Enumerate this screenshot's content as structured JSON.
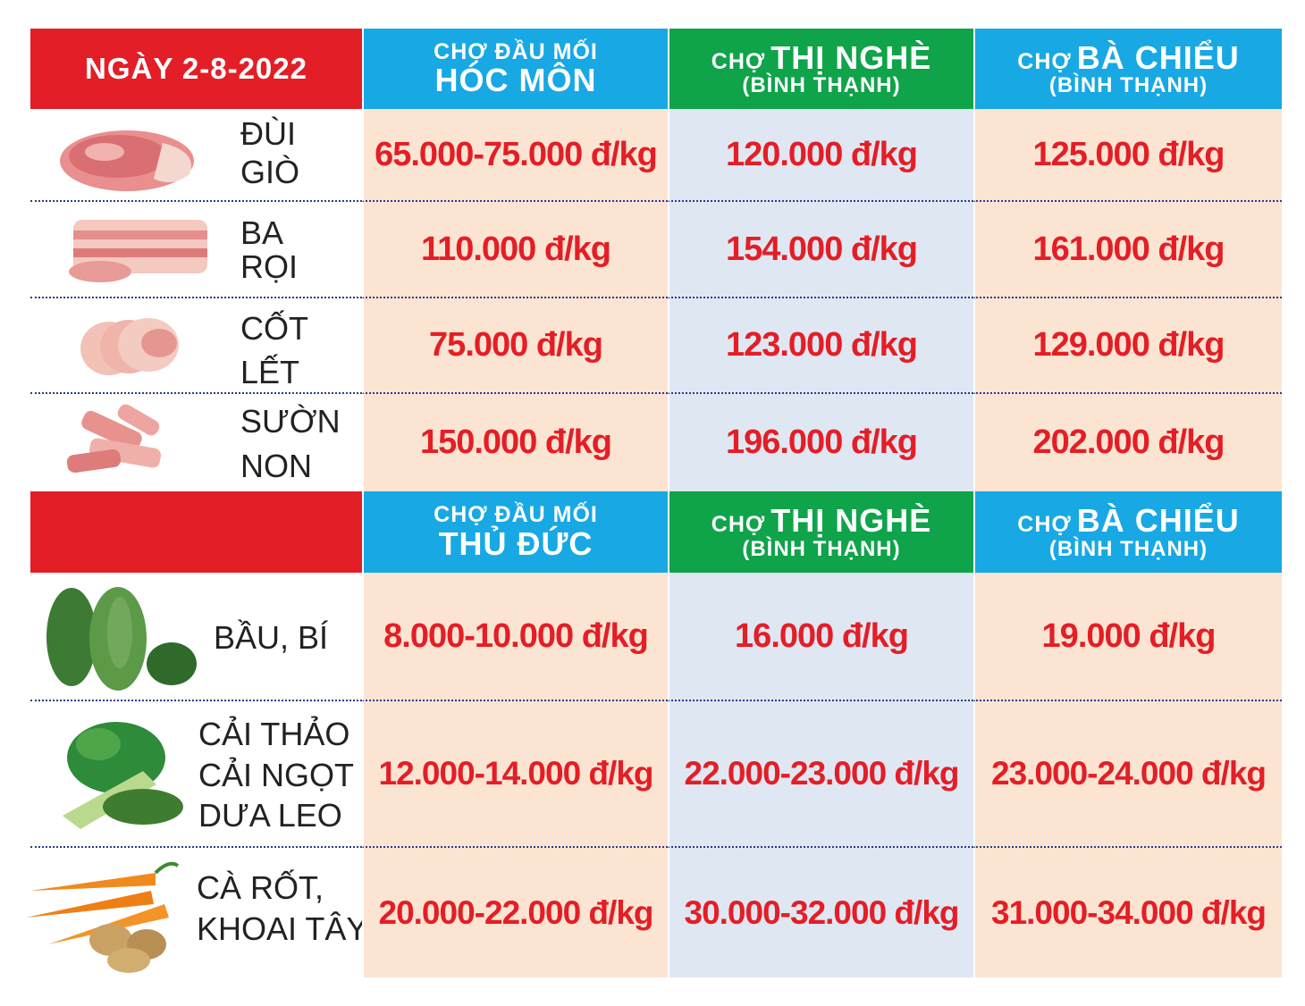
{
  "date_label": "NGÀY 2-8-2022",
  "meat_header": {
    "col1": {
      "small": "CHỢ ĐẦU MỐI",
      "big": "HÓC MÔN"
    },
    "col2": {
      "prefix": "CHỢ",
      "name": "THỊ NGHÈ",
      "sub": "(BÌNH THẠNH)"
    },
    "col3": {
      "prefix": "CHỢ",
      "name": "BÀ CHIỂU",
      "sub": "(BÌNH THẠNH)"
    }
  },
  "meat_rows": [
    {
      "label1": "ĐÙI",
      "label2": "GIÒ",
      "p1": "65.000-75.000 đ/kg",
      "p2": "120.000 đ/kg",
      "p3": "125.000 đ/kg",
      "icon": "pork-leg-icon"
    },
    {
      "label1": "BA",
      "label2": "RỌI",
      "p1": "110.000 đ/kg",
      "p2": "154.000 đ/kg",
      "p3": "161.000 đ/kg",
      "icon": "pork-belly-icon"
    },
    {
      "label1": "CỐT",
      "label2": "LẾT",
      "p1": "75.000 đ/kg",
      "p2": "123.000 đ/kg",
      "p3": "129.000 đ/kg",
      "icon": "pork-chop-icon"
    },
    {
      "label1": "SƯỜN",
      "label2": "NON",
      "p1": "150.000 đ/kg",
      "p2": "196.000 đ/kg",
      "p3": "202.000 đ/kg",
      "icon": "pork-ribs-icon"
    }
  ],
  "veg_header": {
    "col1": {
      "small": "CHỢ ĐẦU MỐI",
      "big": "THỦ ĐỨC"
    },
    "col2": {
      "prefix": "CHỢ",
      "name": "THỊ NGHÈ",
      "sub": "(BÌNH THẠNH)"
    },
    "col3": {
      "prefix": "CHỢ",
      "name": "BÀ CHIỂU",
      "sub": "(BÌNH THẠNH)"
    }
  },
  "veg_rows": [
    {
      "lines": [
        "BẦU, BÍ"
      ],
      "p1": "8.000-10.000 đ/kg",
      "p2": "16.000 đ/kg",
      "p3": "19.000 đ/kg",
      "icon": "gourd-icon"
    },
    {
      "lines": [
        "CẢI THẢO",
        "CẢI NGỌT",
        "DƯA LEO"
      ],
      "p1": "12.000-14.000 đ/kg",
      "p2": "22.000-23.000 đ/kg",
      "p3": "23.000-24.000 đ/kg",
      "icon": "greens-icon"
    },
    {
      "lines": [
        "CÀ RỐT,",
        "KHOAI TÂY"
      ],
      "p1": "20.000-22.000 đ/kg",
      "p2": "30.000-32.000 đ/kg",
      "p3": "31.000-34.000 đ/kg",
      "icon": "carrot-potato-icon"
    }
  ],
  "colors": {
    "red": "#e41e26",
    "blue": "#18a8e4",
    "green": "#0fa34a",
    "peach": "#fbe4d2",
    "lightblue": "#dfe7f3"
  }
}
